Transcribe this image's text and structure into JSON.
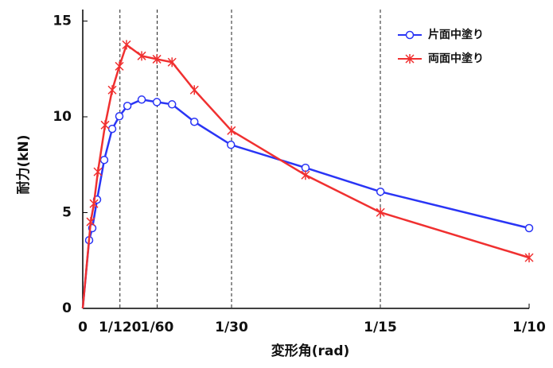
{
  "chart_data": {
    "type": "line",
    "xlabel": "変形角(rad)",
    "ylabel": "耐力(kN)",
    "xlim": [
      0,
      0.1
    ],
    "ylim": [
      0,
      15.6
    ],
    "xticks": [
      0,
      {
        "value": 0.008333,
        "label": "1/120"
      },
      {
        "value": 0.016667,
        "label": "1/60"
      },
      {
        "value": 0.033333,
        "label": "1/30"
      },
      {
        "value": 0.066667,
        "label": "1/15"
      },
      {
        "value": 0.1,
        "label": "1/10"
      }
    ],
    "yticks": [
      0,
      5,
      10,
      15
    ],
    "grid": "x-dashed",
    "legend": "upper right",
    "series": [
      {
        "name": "片面中塗り",
        "color": "#2a35f5",
        "marker": "circle",
        "x": [
          0,
          0.00143,
          0.00214,
          0.00321,
          0.00481,
          0.0066,
          0.0082,
          0.01,
          0.0132,
          0.0166,
          0.02,
          0.025,
          0.0332,
          0.0499,
          0.0667,
          0.1
        ],
        "values": [
          0,
          3.56,
          4.19,
          5.68,
          7.75,
          9.37,
          10.03,
          10.57,
          10.9,
          10.77,
          10.65,
          9.74,
          8.54,
          7.34,
          6.09,
          4.19
        ]
      },
      {
        "name": "両面中塗り",
        "color": "#f03030",
        "marker": "x",
        "x": [
          0,
          0.00178,
          0.0025,
          0.00339,
          0.005,
          0.0066,
          0.0082,
          0.0098,
          0.0132,
          0.0166,
          0.02,
          0.025,
          0.0333,
          0.0499,
          0.0667,
          0.1
        ],
        "values": [
          0,
          4.52,
          5.47,
          7.13,
          9.57,
          11.4,
          12.64,
          13.76,
          13.18,
          13.01,
          12.85,
          11.4,
          9.28,
          6.96,
          5.01,
          2.65
        ]
      }
    ]
  }
}
